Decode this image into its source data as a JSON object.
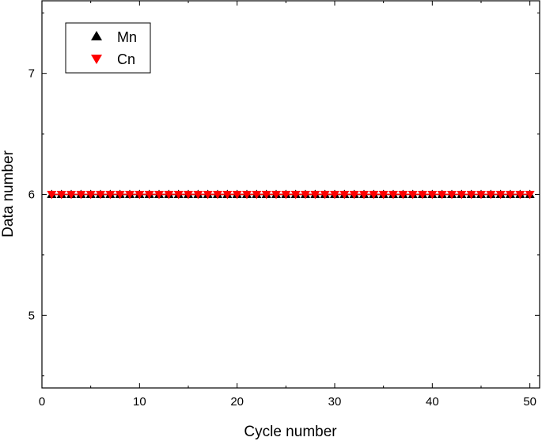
{
  "chart_data": {
    "type": "scatter",
    "xlabel": "Cycle number",
    "ylabel": "Data number",
    "xlim": [
      0,
      51
    ],
    "ylim": [
      4.4,
      7.6
    ],
    "x_ticks": [
      "0",
      "10",
      "20",
      "30",
      "40",
      "50"
    ],
    "y_ticks": [
      "5",
      "6",
      "7"
    ],
    "x": [
      1,
      2,
      3,
      4,
      5,
      6,
      7,
      8,
      9,
      10,
      11,
      12,
      13,
      14,
      15,
      16,
      17,
      18,
      19,
      20,
      21,
      22,
      23,
      24,
      25,
      26,
      27,
      28,
      29,
      30,
      31,
      32,
      33,
      34,
      35,
      36,
      37,
      38,
      39,
      40,
      41,
      42,
      43,
      44,
      45,
      46,
      47,
      48,
      49,
      50
    ],
    "series": [
      {
        "name": "Mn",
        "marker": "triangle-up",
        "color": "#000000",
        "values": [
          6,
          6,
          6,
          6,
          6,
          6,
          6,
          6,
          6,
          6,
          6,
          6,
          6,
          6,
          6,
          6,
          6,
          6,
          6,
          6,
          6,
          6,
          6,
          6,
          6,
          6,
          6,
          6,
          6,
          6,
          6,
          6,
          6,
          6,
          6,
          6,
          6,
          6,
          6,
          6,
          6,
          6,
          6,
          6,
          6,
          6,
          6,
          6,
          6,
          6
        ]
      },
      {
        "name": "Cn",
        "marker": "triangle-down",
        "color": "#ff0000",
        "values": [
          6,
          6,
          6,
          6,
          6,
          6,
          6,
          6,
          6,
          6,
          6,
          6,
          6,
          6,
          6,
          6,
          6,
          6,
          6,
          6,
          6,
          6,
          6,
          6,
          6,
          6,
          6,
          6,
          6,
          6,
          6,
          6,
          6,
          6,
          6,
          6,
          6,
          6,
          6,
          6,
          6,
          6,
          6,
          6,
          6,
          6,
          6,
          6,
          6,
          6
        ]
      }
    ],
    "legend_position": "top-left",
    "grid": false
  }
}
